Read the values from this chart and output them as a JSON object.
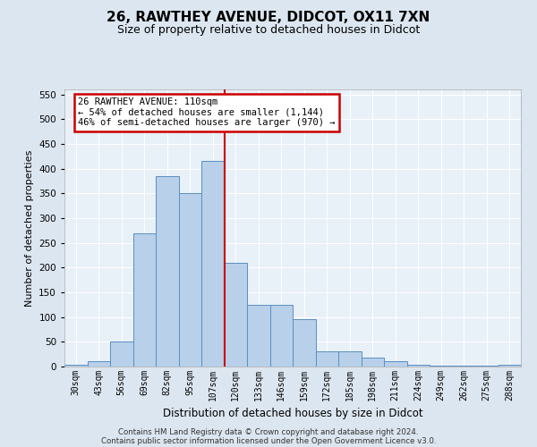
{
  "title1": "26, RAWTHEY AVENUE, DIDCOT, OX11 7XN",
  "title2": "Size of property relative to detached houses in Didcot",
  "xlabel": "Distribution of detached houses by size in Didcot",
  "ylabel": "Number of detached properties",
  "categories": [
    "30sqm",
    "43sqm",
    "56sqm",
    "69sqm",
    "82sqm",
    "95sqm",
    "107sqm",
    "120sqm",
    "133sqm",
    "146sqm",
    "159sqm",
    "172sqm",
    "185sqm",
    "198sqm",
    "211sqm",
    "224sqm",
    "249sqm",
    "262sqm",
    "275sqm",
    "288sqm"
  ],
  "bar_heights": [
    3,
    10,
    50,
    270,
    385,
    350,
    415,
    210,
    125,
    125,
    95,
    30,
    30,
    18,
    10,
    3,
    2,
    2,
    2,
    3
  ],
  "bar_color": "#b8d0ea",
  "bar_edge_color": "#5a8fc0",
  "vline_color": "#cc0000",
  "vline_x_index": 6.5,
  "annotation_text": "26 RAWTHEY AVENUE: 110sqm\n← 54% of detached houses are smaller (1,144)\n46% of semi-detached houses are larger (970) →",
  "annotation_box_edgecolor": "#cc0000",
  "ylim": [
    0,
    560
  ],
  "yticks": [
    0,
    50,
    100,
    150,
    200,
    250,
    300,
    350,
    400,
    450,
    500,
    550
  ],
  "footer1": "Contains HM Land Registry data © Crown copyright and database right 2024.",
  "footer2": "Contains public sector information licensed under the Open Government Licence v3.0.",
  "bg_color": "#dce6f0",
  "plot_bg_color": "#e8f0f8",
  "grid_color": "#ffffff",
  "title1_fontsize": 11,
  "title2_fontsize": 9
}
